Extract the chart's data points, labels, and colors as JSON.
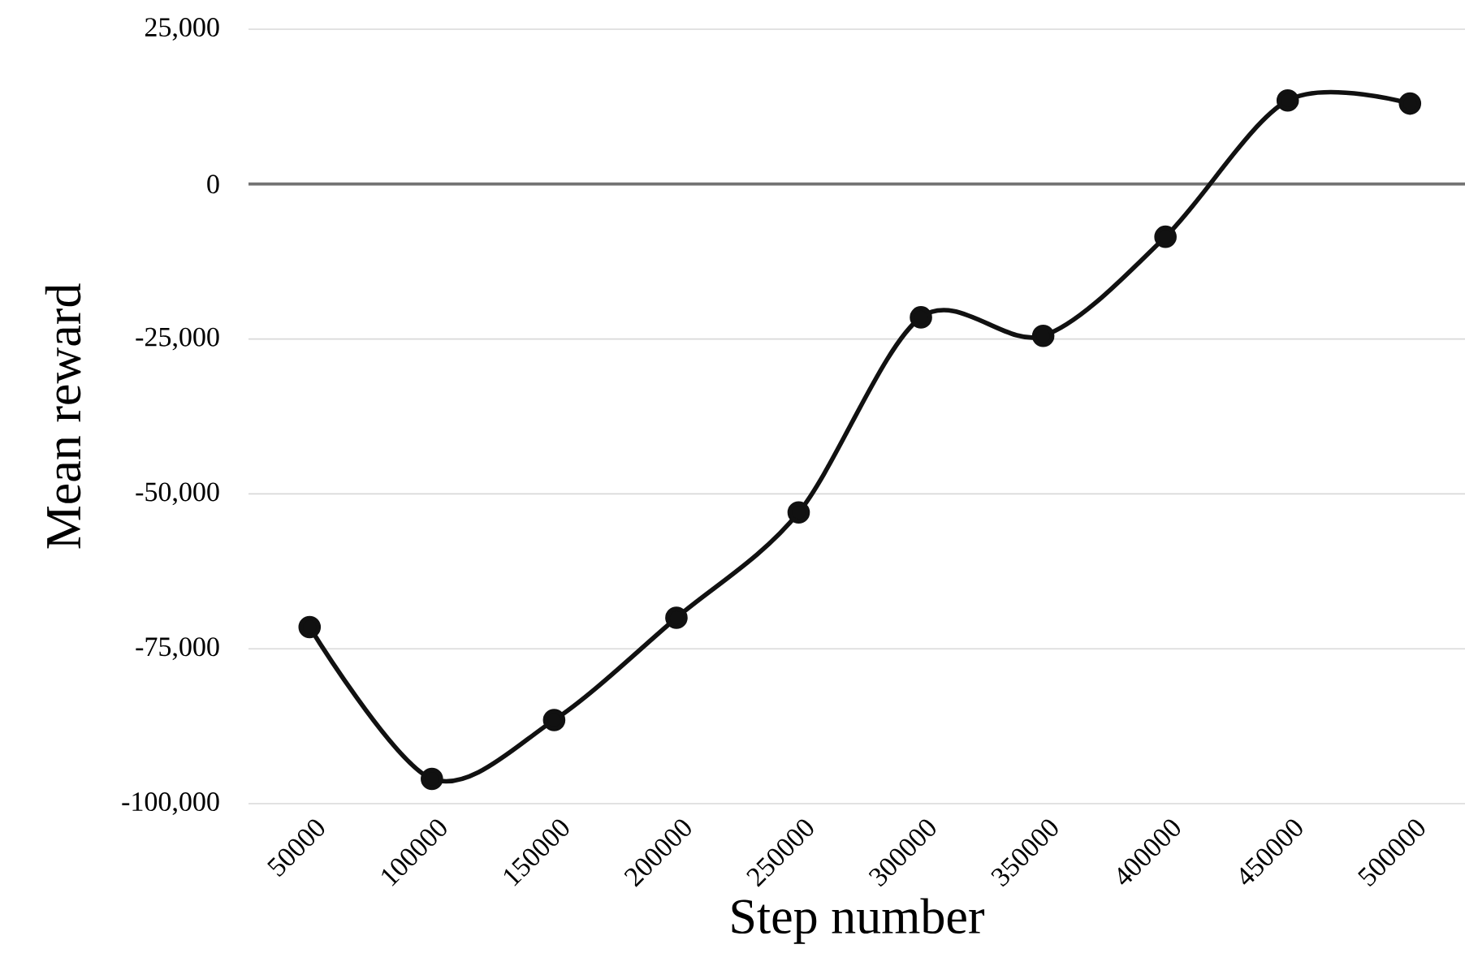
{
  "chart_data": {
    "type": "line",
    "xlabel": "Step number",
    "ylabel": "Mean reward",
    "categories": [
      "50000",
      "100000",
      "150000",
      "200000",
      "250000",
      "300000",
      "350000",
      "400000",
      "450000",
      "500000"
    ],
    "values": [
      -71500,
      -96000,
      -86500,
      -70000,
      -53000,
      -21500,
      -24500,
      -8500,
      13500,
      13000
    ],
    "color": "#111111",
    "marker": "circle",
    "line_style": "solid",
    "grid": "y",
    "ylim": [
      -100000,
      25000
    ],
    "yticks": [
      {
        "value": -100000,
        "label": "-100,000"
      },
      {
        "value": -75000,
        "label": "-75,000"
      },
      {
        "value": -50000,
        "label": "-50,000"
      },
      {
        "value": -25000,
        "label": "-25,000"
      },
      0,
      {
        "value": 25000,
        "label": "25,000"
      }
    ]
  }
}
